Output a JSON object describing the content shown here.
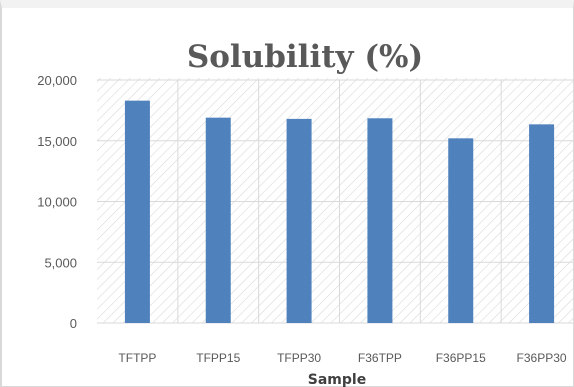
{
  "chart_data": {
    "type": "bar",
    "title": "Solubility (%)",
    "xlabel": "Sample",
    "ylabel": "",
    "categories": [
      "TFTPP",
      "TFPP15",
      "TFPP30",
      "F36TPP",
      "F36PP15",
      "F36PP30"
    ],
    "values": [
      18300,
      16900,
      16800,
      16850,
      15200,
      16350
    ],
    "ylim": [
      0,
      20000
    ],
    "yticks": [
      "0",
      "5,000",
      "10,000",
      "15,000",
      "20,000"
    ],
    "ytick_values": [
      0,
      5000,
      10000,
      15000,
      20000
    ],
    "grid": true,
    "legend": "none",
    "colors": {
      "bar": "#4f81bd",
      "gridline": "#d9d9d9",
      "hatch": "#d9d9d9",
      "text": "#595959"
    }
  }
}
